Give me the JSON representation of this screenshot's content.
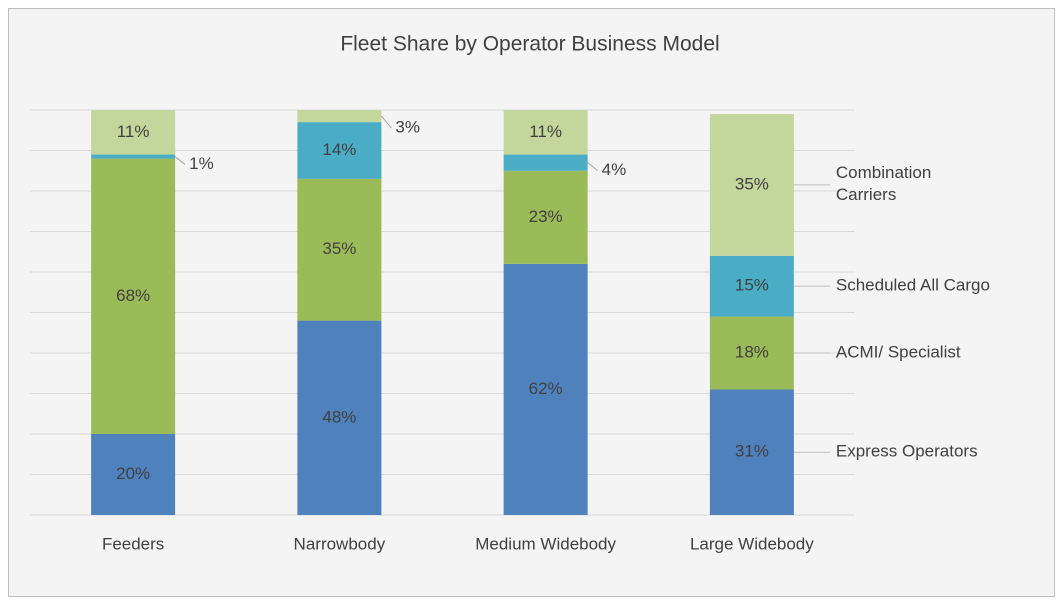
{
  "chart_data": {
    "type": "stacked_bar",
    "title": "Fleet Share by Operator Business Model",
    "categories": [
      "Feeders",
      "Narrowbody",
      "Medium Widebody",
      "Large Widebody"
    ],
    "series": [
      {
        "name": "Express Operators",
        "color": "#4f81bd",
        "values": [
          20,
          48,
          62,
          31
        ],
        "value_labels": [
          "20%",
          "48%",
          "62%",
          "31%"
        ]
      },
      {
        "name": "ACMI/ Specialist",
        "color": "#9bbb59",
        "values": [
          68,
          35,
          23,
          18
        ],
        "value_labels": [
          "68%",
          "35%",
          "23%",
          "18%"
        ]
      },
      {
        "name": "Scheduled All Cargo",
        "color": "#4bacc6",
        "values": [
          1,
          14,
          4,
          15
        ],
        "value_labels": [
          "1%",
          "14%",
          "4%",
          "15%"
        ]
      },
      {
        "name": "Combination Carriers",
        "color": "#c3d69b",
        "values": [
          11,
          3,
          11,
          35
        ],
        "value_labels": [
          "11%",
          "3%",
          "11%",
          "35%"
        ]
      }
    ],
    "ylim": [
      0,
      100
    ],
    "yticks": [
      0,
      10,
      20,
      30,
      40,
      50,
      60,
      70,
      80,
      90,
      100
    ],
    "grid": true
  }
}
